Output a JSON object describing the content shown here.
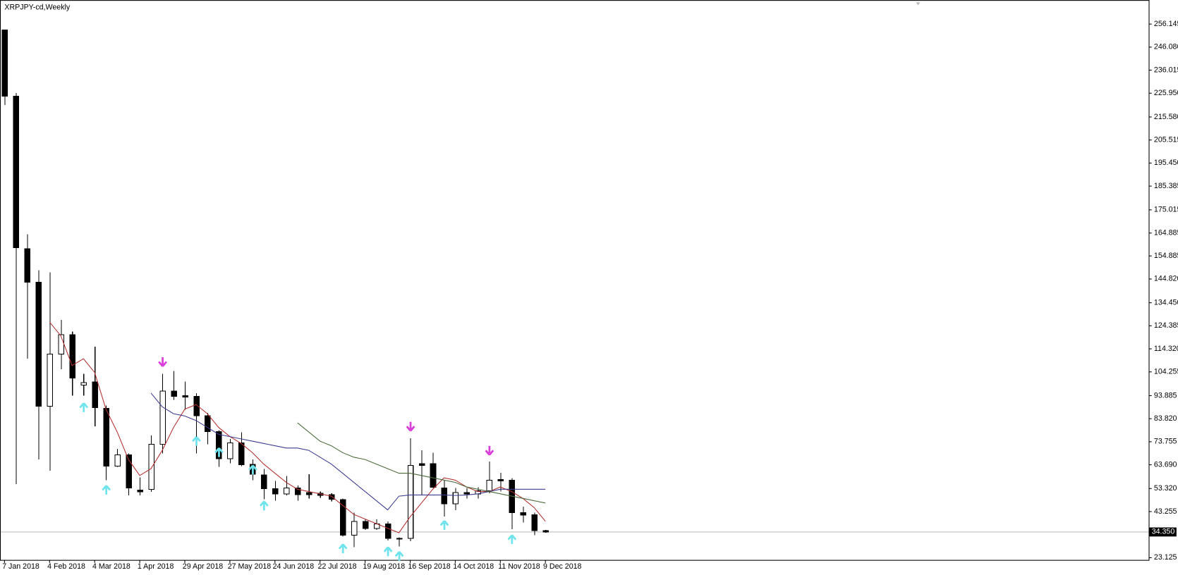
{
  "chart_data": {
    "type": "candlestick",
    "title": "XRPJPY-cd,Weekly",
    "categories": [
      "7 Jan 2018",
      null,
      null,
      null,
      "4 Feb 2018",
      null,
      null,
      null,
      "4 Mar 2018",
      null,
      null,
      null,
      "1 Apr 2018",
      null,
      null,
      null,
      "29 Apr 2018",
      null,
      null,
      null,
      "27 May 2018",
      null,
      null,
      null,
      "24 Jun 2018",
      null,
      null,
      null,
      "22 Jul 2018",
      null,
      null,
      null,
      "19 Aug 2018",
      null,
      null,
      null,
      "16 Sep 2018",
      null,
      null,
      null,
      "14 Oct 2018",
      null,
      null,
      null,
      "11 Nov 2018",
      null,
      null,
      null,
      "9 Dec 2018"
    ],
    "open": [
      253.5,
      224.7,
      158.0,
      143.4,
      89.3,
      112.0,
      120.5,
      98.5,
      99.8,
      88.4,
      63.1,
      68.0,
      52.6,
      52.9,
      72.6,
      95.9,
      93.9,
      93.6,
      85.1,
      78.2,
      66.4,
      73.3,
      63.8,
      59.2,
      53.3,
      51.0,
      53.6,
      51.6,
      51.3,
      50.7,
      48.4,
      33.0,
      38.9,
      35.9,
      37.9,
      31.6,
      31.6,
      64.1,
      64.1,
      53.6,
      46.7,
      51.6,
      51.0,
      52.3,
      57.2,
      56.9,
      42.8,
      41.8,
      34.9
    ],
    "high": [
      253.5,
      226.0,
      164.4,
      148.6,
      147.7,
      127.0,
      121.8,
      103.4,
      115.2,
      89.5,
      70.6,
      68.7,
      58.2,
      76.5,
      103.4,
      104.7,
      100.1,
      94.9,
      86.4,
      78.8,
      74.9,
      77.9,
      66.1,
      61.8,
      56.6,
      58.8,
      54.6,
      59.5,
      52.0,
      51.3,
      49.0,
      42.8,
      39.8,
      39.8,
      38.9,
      32.0,
      75.2,
      70.0,
      69.0,
      56.9,
      53.6,
      53.6,
      53.9,
      65.1,
      60.2,
      57.9,
      45.4,
      42.8,
      35.2
    ],
    "low": [
      220.8,
      55.2,
      110.0,
      66.1,
      61.1,
      105.4,
      93.9,
      93.9,
      80.5,
      56.9,
      62.8,
      50.3,
      50.3,
      51.9,
      68.7,
      92.0,
      87.7,
      68.7,
      72.6,
      62.8,
      64.4,
      63.1,
      56.9,
      48.7,
      48.0,
      50.3,
      48.0,
      49.0,
      49.3,
      47.7,
      32.3,
      27.7,
      35.2,
      35.2,
      30.7,
      28.0,
      30.3,
      50.3,
      53.6,
      41.1,
      43.8,
      49.0,
      49.0,
      51.3,
      52.0,
      35.6,
      38.5,
      33.0,
      34.0
    ],
    "close": [
      224.7,
      158.5,
      143.4,
      89.3,
      112.0,
      120.5,
      101.5,
      99.5,
      88.7,
      63.1,
      68.0,
      53.6,
      51.9,
      72.6,
      95.9,
      93.6,
      93.3,
      85.1,
      78.2,
      66.4,
      73.3,
      63.8,
      59.5,
      53.3,
      51.0,
      53.6,
      50.7,
      50.7,
      50.3,
      48.7,
      33.0,
      38.9,
      35.9,
      37.9,
      31.6,
      31.3,
      63.4,
      63.4,
      53.9,
      46.7,
      51.6,
      51.0,
      52.3,
      56.9,
      56.6,
      42.8,
      41.8,
      34.9,
      34.35
    ],
    "up_color": "#ffffff",
    "down_color": "#000000",
    "lines": [
      {
        "color": "#b03030",
        "values": [
          null,
          null,
          null,
          null,
          126,
          120,
          107,
          110,
          104,
          88,
          78,
          66,
          59,
          62,
          70,
          80,
          88,
          90,
          86,
          80,
          76,
          73,
          69,
          64,
          60,
          56,
          53,
          52,
          51,
          50,
          46,
          42,
          40,
          38,
          36,
          34,
          41,
          47,
          53,
          58,
          57,
          54,
          52,
          52,
          54,
          52,
          49,
          45,
          39
        ]
      },
      {
        "color": "#3c3c8c",
        "values": [
          null,
          null,
          null,
          null,
          null,
          null,
          null,
          null,
          null,
          null,
          null,
          null,
          null,
          95,
          89,
          86,
          85,
          83,
          80,
          77,
          76,
          75,
          74,
          73,
          72,
          71,
          71,
          70,
          67,
          64,
          60,
          56,
          52,
          48,
          44,
          50,
          50.5,
          50.5,
          50.5,
          50.5,
          50.3,
          50.5,
          51,
          52,
          53,
          53,
          53,
          53,
          53
        ]
      },
      {
        "color": "#4a6a3a",
        "values": [
          null,
          null,
          null,
          null,
          null,
          null,
          null,
          null,
          null,
          null,
          null,
          null,
          null,
          null,
          null,
          null,
          null,
          null,
          null,
          null,
          null,
          null,
          null,
          null,
          null,
          null,
          82,
          78,
          74,
          72,
          69,
          67,
          66,
          64,
          62,
          60,
          60,
          59,
          58,
          57,
          56,
          54,
          53,
          52,
          51,
          50,
          49,
          48,
          47
        ]
      }
    ],
    "buy_signals": {
      "color": "#70e4ec",
      "values": [
        null,
        null,
        null,
        null,
        null,
        null,
        null,
        90.6,
        null,
        54.6,
        null,
        null,
        null,
        null,
        null,
        null,
        null,
        75.9,
        null,
        71.0,
        null,
        null,
        63.4,
        47.7,
        null,
        null,
        null,
        null,
        null,
        null,
        29.0,
        null,
        null,
        null,
        27.7,
        25.7,
        null,
        null,
        null,
        39.2,
        null,
        null,
        null,
        null,
        null,
        33.0,
        null,
        null,
        null
      ]
    },
    "sell_signals": {
      "color": "#d940d9",
      "values": [
        null,
        null,
        null,
        null,
        null,
        null,
        null,
        null,
        null,
        null,
        null,
        null,
        null,
        null,
        106.7,
        null,
        null,
        null,
        null,
        null,
        null,
        null,
        null,
        null,
        null,
        null,
        null,
        null,
        null,
        null,
        null,
        null,
        null,
        null,
        null,
        null,
        78.5,
        null,
        null,
        null,
        null,
        null,
        null,
        68.0,
        null,
        null,
        null,
        null,
        null
      ]
    },
    "last_price": {
      "value": 34.35,
      "label": "34.350"
    },
    "ylim": [
      22.142,
      265.97
    ],
    "yticks": [
      256.145,
      {
        "value": 246.08,
        "label": "246.080"
      },
      236.015,
      {
        "value": 225.95,
        "label": "225.950"
      },
      {
        "value": 215.58,
        "label": "215.580"
      },
      205.515,
      {
        "value": 195.45,
        "label": "195.450"
      },
      185.385,
      175.015,
      164.885,
      154.885,
      {
        "value": 144.82,
        "label": "144.820"
      },
      {
        "value": 134.45,
        "label": "134.450"
      },
      124.385,
      {
        "value": 114.32,
        "label": "114.320"
      },
      104.255,
      93.885,
      {
        "value": 83.82,
        "label": "83.820"
      },
      73.755,
      {
        "value": 63.69,
        "label": "63.690"
      },
      {
        "value": 53.32,
        "label": "53.320"
      },
      43.255,
      23.125
    ]
  }
}
